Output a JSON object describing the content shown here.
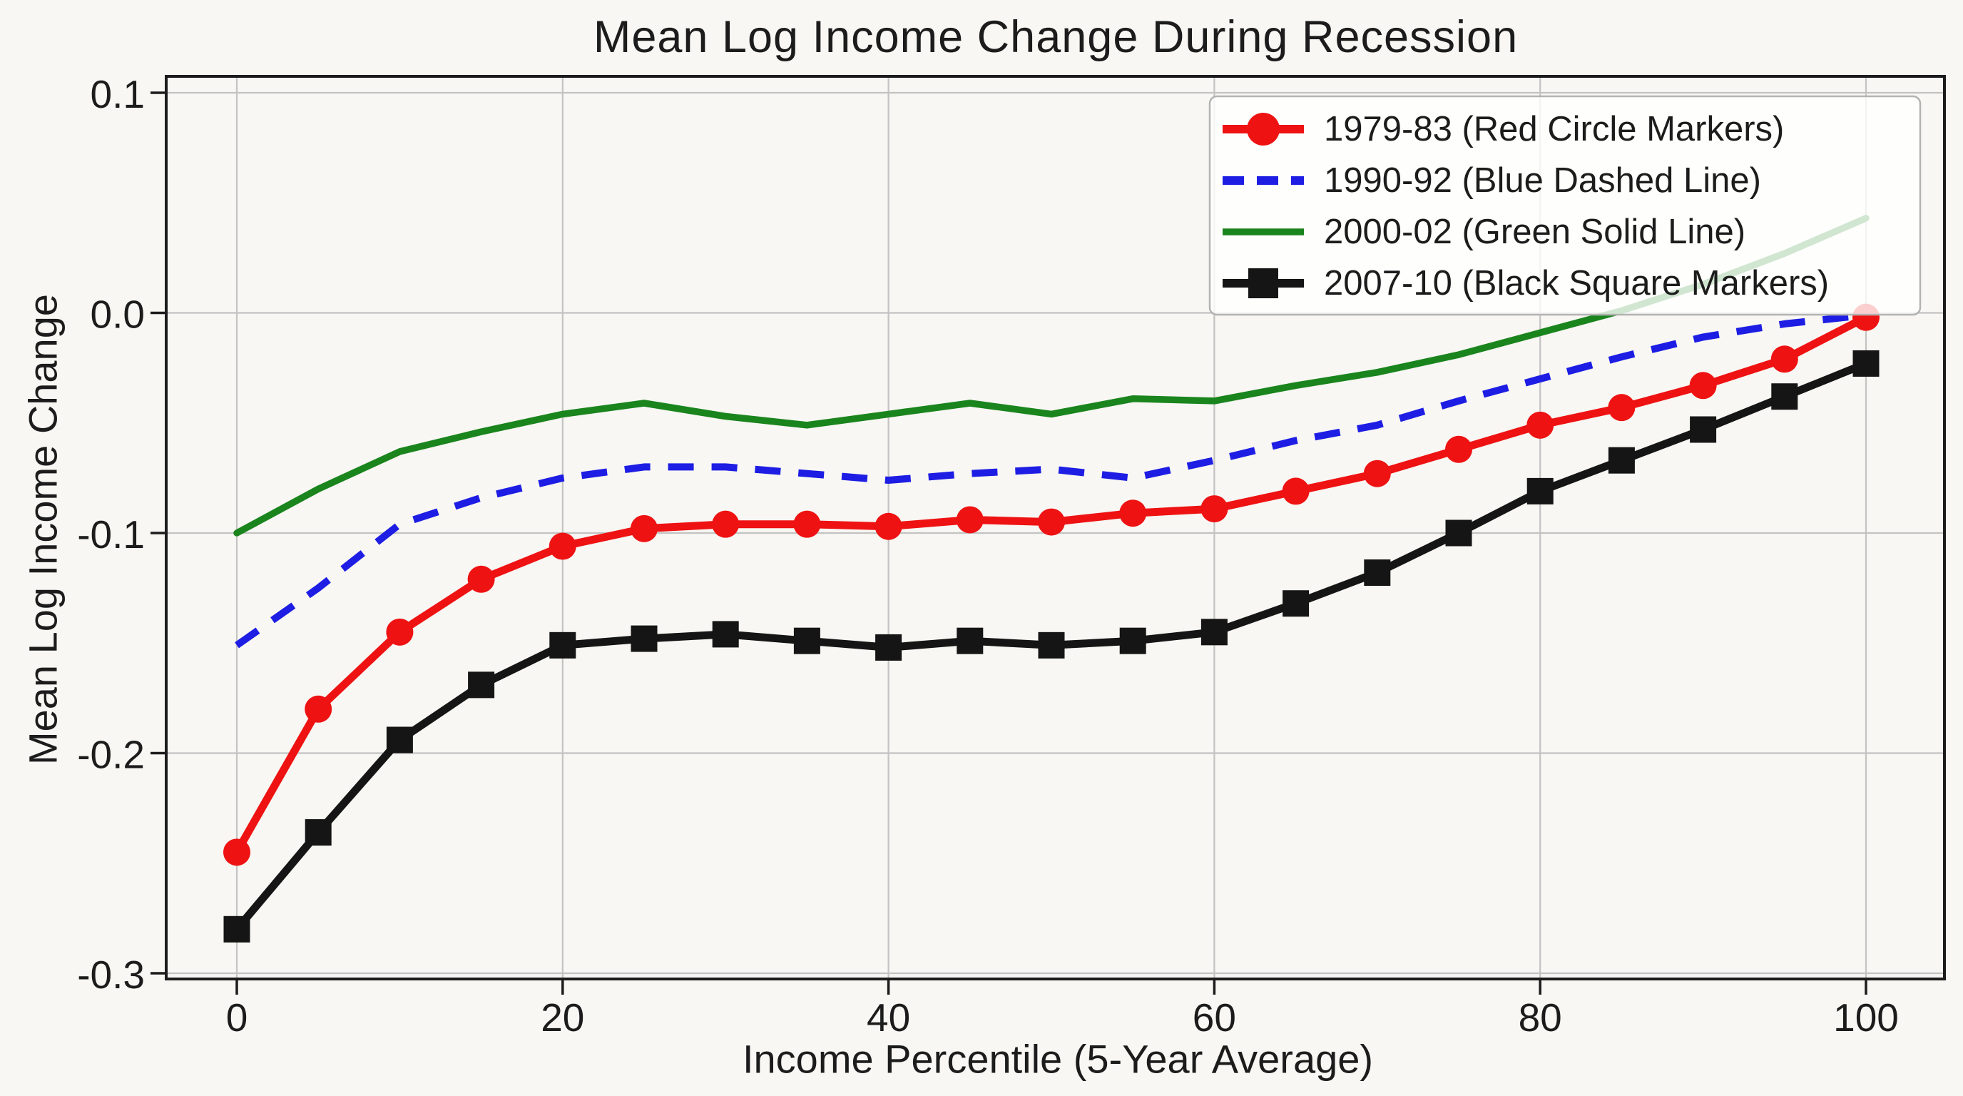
{
  "page": {
    "background": "#f8f7f3",
    "grid_color": "#c3c3c3",
    "frame_color": "#1c1c1c",
    "text_color": "#1c1c1c",
    "legend_border_color": "#b3b3b3",
    "legend_fill": "rgba(255,255,255,0.8)"
  },
  "chart_data": {
    "type": "line",
    "title": "Mean Log Income Change During Recession",
    "xlabel": "Income Percentile (5-Year Average)",
    "ylabel": "Mean Log Income Change",
    "grid": true,
    "legend_position": "upper right",
    "xlim": [
      0,
      100
    ],
    "ylim": [
      -0.3,
      0.1
    ],
    "xticks": {
      "values": [
        0,
        20,
        40,
        60,
        80,
        100
      ],
      "labels": [
        "0",
        "20",
        "40",
        "60",
        "80",
        "100"
      ]
    },
    "yticks": {
      "values": [
        0.1,
        0.0,
        -0.1,
        -0.2,
        -0.3
      ],
      "labels": [
        "0.1",
        "0.0",
        "-0.1",
        "-0.2",
        "-0.3"
      ]
    },
    "x": [
      0,
      5,
      10,
      15,
      20,
      25,
      30,
      35,
      40,
      45,
      50,
      55,
      60,
      65,
      70,
      75,
      80,
      85,
      90,
      95,
      100
    ],
    "series": [
      {
        "label": "1979-83 (Red Circle Markers)",
        "color": "#ee1212",
        "line_style": "solid",
        "marker": "circle",
        "values": [
          -0.245,
          -0.18,
          -0.145,
          -0.121,
          -0.106,
          -0.098,
          -0.096,
          -0.096,
          -0.097,
          -0.094,
          -0.095,
          -0.091,
          -0.089,
          -0.081,
          -0.073,
          -0.062,
          -0.051,
          -0.043,
          -0.033,
          -0.021,
          -0.002
        ]
      },
      {
        "label": "1990-92 (Blue Dashed Line)",
        "color": "#1d1de4",
        "line_style": "dashed",
        "marker": "none",
        "values": [
          -0.151,
          -0.125,
          -0.096,
          -0.084,
          -0.075,
          -0.07,
          -0.07,
          -0.073,
          -0.076,
          -0.073,
          -0.071,
          -0.075,
          -0.067,
          -0.058,
          -0.051,
          -0.04,
          -0.03,
          -0.02,
          -0.011,
          -0.005,
          -0.001
        ]
      },
      {
        "label": "2000-02 (Green Solid Line)",
        "color": "#1a841d",
        "line_style": "solid",
        "marker": "none",
        "values": [
          -0.1,
          -0.08,
          -0.063,
          -0.054,
          -0.046,
          -0.041,
          -0.047,
          -0.051,
          -0.046,
          -0.041,
          -0.046,
          -0.039,
          -0.04,
          -0.033,
          -0.027,
          -0.019,
          -0.009,
          0.001,
          0.013,
          0.027,
          0.043
        ]
      },
      {
        "label": "2007-10 (Black Square Markers)",
        "color": "#151515",
        "line_style": "solid",
        "marker": "square",
        "values": [
          -0.28,
          -0.236,
          -0.194,
          -0.169,
          -0.151,
          -0.148,
          -0.146,
          -0.149,
          -0.152,
          -0.149,
          -0.151,
          -0.149,
          -0.145,
          -0.132,
          -0.118,
          -0.1,
          -0.081,
          -0.067,
          -0.053,
          -0.038,
          -0.023
        ]
      }
    ]
  }
}
